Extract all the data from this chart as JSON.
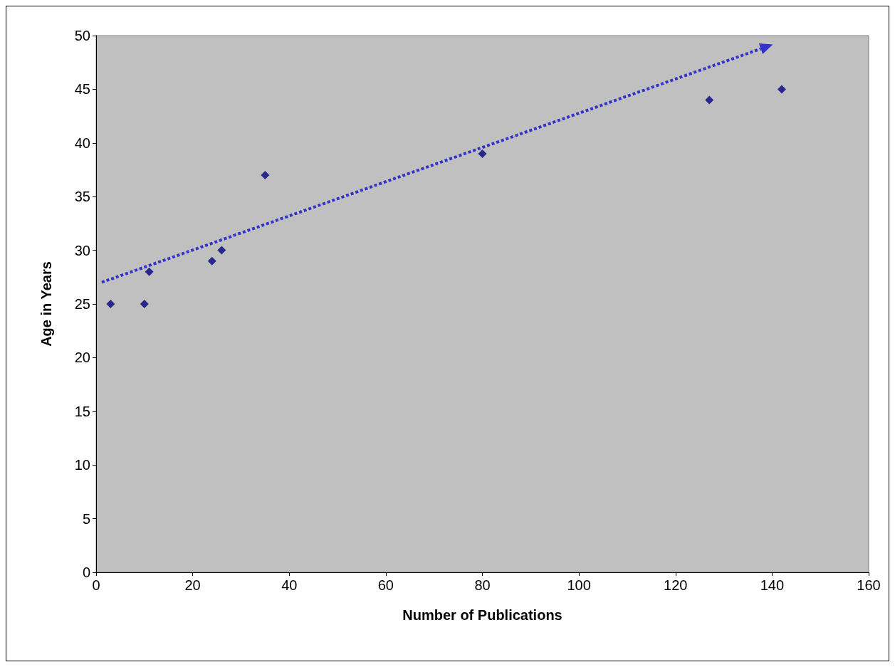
{
  "chart_data": {
    "type": "scatter",
    "xlabel": "Number of Publications",
    "ylabel": "Age in Years",
    "xlim": [
      0,
      160
    ],
    "xticks": [
      0,
      20,
      40,
      60,
      80,
      100,
      120,
      140,
      160
    ],
    "ylim": [
      0,
      50
    ],
    "yticks": [
      0,
      5,
      10,
      15,
      20,
      25,
      30,
      35,
      40,
      45,
      50
    ],
    "grid": false,
    "series": [
      {
        "color": "#000080",
        "marker": "diamond",
        "x": [
          3,
          10,
          11,
          24,
          26,
          35,
          80,
          127,
          142
        ],
        "values": [
          25,
          25,
          28,
          29,
          30,
          37,
          39,
          44,
          45
        ]
      }
    ]
  }
}
